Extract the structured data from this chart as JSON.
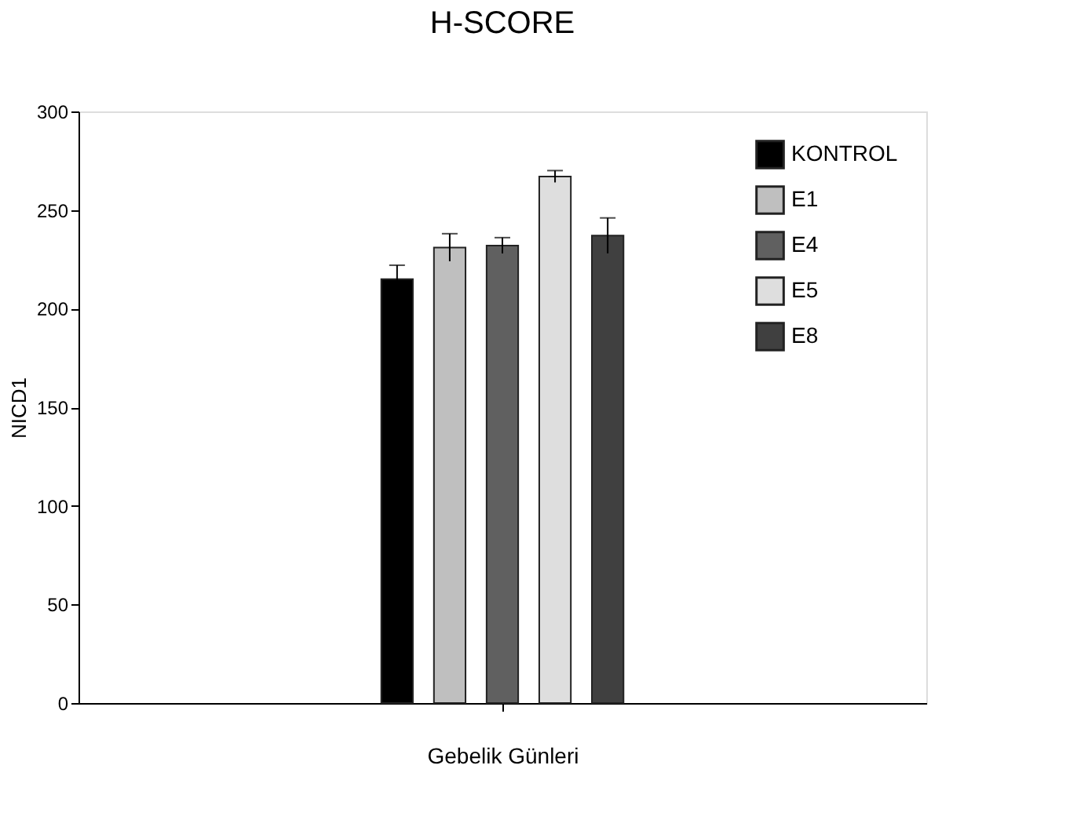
{
  "chart_data": {
    "type": "bar",
    "title": "H-SCORE",
    "xlabel": "Gebelik Günleri",
    "ylabel": "NICD1",
    "categories": [
      null
    ],
    "series": [
      {
        "name": "KONTROL",
        "color": "#000000",
        "values": [
          215
        ],
        "errors": [
          7
        ]
      },
      {
        "name": "E1",
        "color": "#bfbfbf",
        "values": [
          231
        ],
        "errors": [
          7
        ]
      },
      {
        "name": "E4",
        "color": "#606060",
        "values": [
          232
        ],
        "errors": [
          4
        ]
      },
      {
        "name": "E5",
        "color": "#dedede",
        "values": [
          267
        ],
        "errors": [
          3
        ]
      },
      {
        "name": "E8",
        "color": "#404040",
        "values": [
          237
        ],
        "errors": [
          9
        ]
      }
    ],
    "ylim": [
      0,
      300
    ],
    "yticks": [
      0,
      50,
      100,
      150,
      200,
      250,
      300
    ],
    "legend": "top right",
    "grid": false
  }
}
